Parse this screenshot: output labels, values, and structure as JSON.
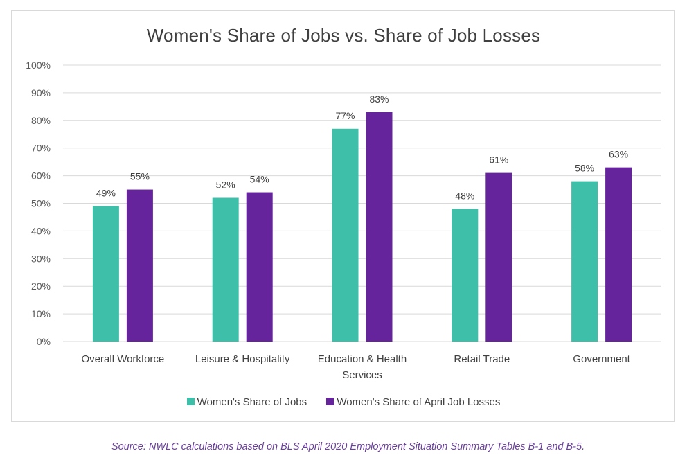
{
  "chart_data": {
    "type": "bar",
    "title": "Women's Share of Jobs vs. Share of Job Losses",
    "categories": [
      [
        "Overall Workforce"
      ],
      [
        "Leisure & Hospitality"
      ],
      [
        "Education & Health",
        "Services"
      ],
      [
        "Retail Trade"
      ],
      [
        "Government"
      ]
    ],
    "series": [
      {
        "name": "Women's Share of Jobs",
        "color": "#3dbfaa",
        "values": [
          49,
          52,
          77,
          48,
          58
        ],
        "labels": [
          "49%",
          "52%",
          "77%",
          "48%",
          "58%"
        ]
      },
      {
        "name": "Women's Share of April Job Losses",
        "color": "#65249c",
        "values": [
          55,
          54,
          83,
          61,
          63
        ],
        "labels": [
          "55%",
          "54%",
          "83%",
          "61%",
          "63%"
        ]
      }
    ],
    "ylim": [
      0,
      100
    ],
    "yticks": [
      "0%",
      "10%",
      "20%",
      "30%",
      "40%",
      "50%",
      "60%",
      "70%",
      "80%",
      "90%",
      "100%"
    ],
    "gridlines": true,
    "legend_position": "bottom",
    "xlabel": "",
    "ylabel": ""
  },
  "source_note": "Source: NWLC calculations based on BLS April 2020 Employment Situation Summary Tables B-1 and B-5."
}
